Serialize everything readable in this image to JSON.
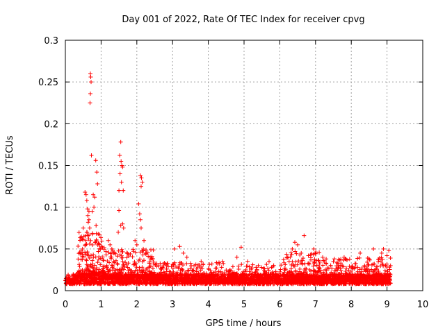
{
  "chart_data": {
    "type": "scatter",
    "title": "Day 001 of 2022, Rate Of TEC Index for receiver cpvg",
    "xlabel": "GPS time / hours",
    "ylabel": "ROTI / TECUs",
    "xlim": [
      0,
      10
    ],
    "ylim": [
      0,
      0.3
    ],
    "x_ticks": [
      0,
      1,
      2,
      3,
      4,
      5,
      6,
      7,
      8,
      9,
      10
    ],
    "y_ticks": [
      0,
      0.05,
      0.1,
      0.15,
      0.2,
      0.25,
      0.3
    ],
    "x_tick_labels": [
      "0",
      "1",
      "2",
      "3",
      "4",
      "5",
      "6",
      "7",
      "8",
      "9",
      "10"
    ],
    "y_tick_labels": [
      "0",
      "0.05",
      "0.1",
      "0.15",
      "0.2",
      "0.25",
      "0.3"
    ],
    "grid": true,
    "marker": "+",
    "marker_color": "#ff0000",
    "series": [
      {
        "name": "ROTI",
        "points": [
          [
            0.55,
            0.118
          ],
          [
            0.58,
            0.115
          ],
          [
            0.6,
            0.108
          ],
          [
            0.62,
            0.098
          ],
          [
            0.63,
            0.09
          ],
          [
            0.64,
            0.082
          ],
          [
            0.66,
            0.095
          ],
          [
            0.68,
            0.075
          ],
          [
            0.7,
            0.26
          ],
          [
            0.71,
            0.256
          ],
          [
            0.72,
            0.25
          ],
          [
            0.7,
            0.236
          ],
          [
            0.69,
            0.225
          ],
          [
            0.73,
            0.162
          ],
          [
            0.78,
            0.115
          ],
          [
            0.82,
            0.112
          ],
          [
            0.85,
            0.156
          ],
          [
            0.88,
            0.142
          ],
          [
            0.9,
            0.128
          ],
          [
            0.92,
            0.068
          ],
          [
            0.95,
            0.055
          ],
          [
            0.5,
            0.075
          ],
          [
            0.52,
            0.065
          ],
          [
            0.48,
            0.05
          ],
          [
            0.57,
            0.06
          ],
          [
            0.61,
            0.045
          ],
          [
            0.66,
            0.085
          ],
          [
            0.75,
            0.095
          ],
          [
            0.8,
            0.1
          ],
          [
            0.86,
            0.078
          ],
          [
            0.6,
            0.07
          ],
          [
            0.65,
            0.062
          ],
          [
            1.2,
            0.06
          ],
          [
            1.25,
            0.055
          ],
          [
            1.3,
            0.05
          ],
          [
            1.35,
            0.045
          ],
          [
            1.5,
            0.12
          ],
          [
            1.52,
            0.162
          ],
          [
            1.55,
            0.178
          ],
          [
            1.56,
            0.155
          ],
          [
            1.58,
            0.15
          ],
          [
            1.6,
            0.148
          ],
          [
            1.53,
            0.14
          ],
          [
            1.57,
            0.13
          ],
          [
            1.5,
            0.096
          ],
          [
            1.62,
            0.12
          ],
          [
            1.6,
            0.08
          ],
          [
            1.63,
            0.075
          ],
          [
            1.55,
            0.078
          ],
          [
            1.48,
            0.07
          ],
          [
            2.05,
            0.104
          ],
          [
            2.08,
            0.092
          ],
          [
            2.1,
            0.085
          ],
          [
            2.12,
            0.075
          ],
          [
            2.1,
            0.138
          ],
          [
            2.13,
            0.135
          ],
          [
            2.15,
            0.13
          ],
          [
            2.12,
            0.125
          ],
          [
            1.95,
            0.06
          ],
          [
            2.0,
            0.055
          ],
          [
            2.18,
            0.05
          ],
          [
            2.2,
            0.06
          ],
          [
            2.25,
            0.045
          ],
          [
            3.05,
            0.05
          ],
          [
            3.2,
            0.053
          ],
          [
            3.3,
            0.045
          ],
          [
            3.4,
            0.04
          ],
          [
            3.6,
            0.03
          ],
          [
            3.8,
            0.035
          ],
          [
            4.1,
            0.032
          ],
          [
            4.4,
            0.035
          ],
          [
            4.8,
            0.04
          ],
          [
            4.92,
            0.052
          ],
          [
            5.1,
            0.035
          ],
          [
            5.4,
            0.03
          ],
          [
            5.7,
            0.035
          ],
          [
            6.2,
            0.04
          ],
          [
            6.35,
            0.05
          ],
          [
            6.42,
            0.058
          ],
          [
            6.5,
            0.055
          ],
          [
            6.6,
            0.045
          ],
          [
            6.68,
            0.066
          ],
          [
            6.8,
            0.042
          ],
          [
            6.95,
            0.05
          ],
          [
            7.2,
            0.04
          ],
          [
            7.5,
            0.035
          ],
          [
            7.8,
            0.04
          ],
          [
            8.25,
            0.045
          ],
          [
            8.5,
            0.038
          ],
          [
            8.62,
            0.05
          ],
          [
            8.85,
            0.045
          ],
          [
            8.9,
            0.05
          ],
          [
            9.0,
            0.042
          ],
          [
            9.05,
            0.048
          ]
        ],
        "band": {
          "x_start": 0.0,
          "x_end": 9.1,
          "y_base": 0.008,
          "y_spread": 0.012,
          "count": 2600
        },
        "clusters": [
          {
            "x_start": 0.35,
            "x_end": 1.1,
            "y_base": 0.02,
            "y_spread": 0.05,
            "count": 160
          },
          {
            "x_start": 1.1,
            "x_end": 2.5,
            "y_base": 0.015,
            "y_spread": 0.035,
            "count": 240
          },
          {
            "x_start": 2.5,
            "x_end": 4.6,
            "y_base": 0.012,
            "y_spread": 0.022,
            "count": 260
          },
          {
            "x_start": 4.6,
            "x_end": 6.1,
            "y_base": 0.012,
            "y_spread": 0.02,
            "count": 180
          },
          {
            "x_start": 6.1,
            "x_end": 7.2,
            "y_base": 0.012,
            "y_spread": 0.035,
            "count": 220
          },
          {
            "x_start": 7.2,
            "x_end": 9.1,
            "y_base": 0.012,
            "y_spread": 0.028,
            "count": 260
          }
        ]
      }
    ]
  }
}
